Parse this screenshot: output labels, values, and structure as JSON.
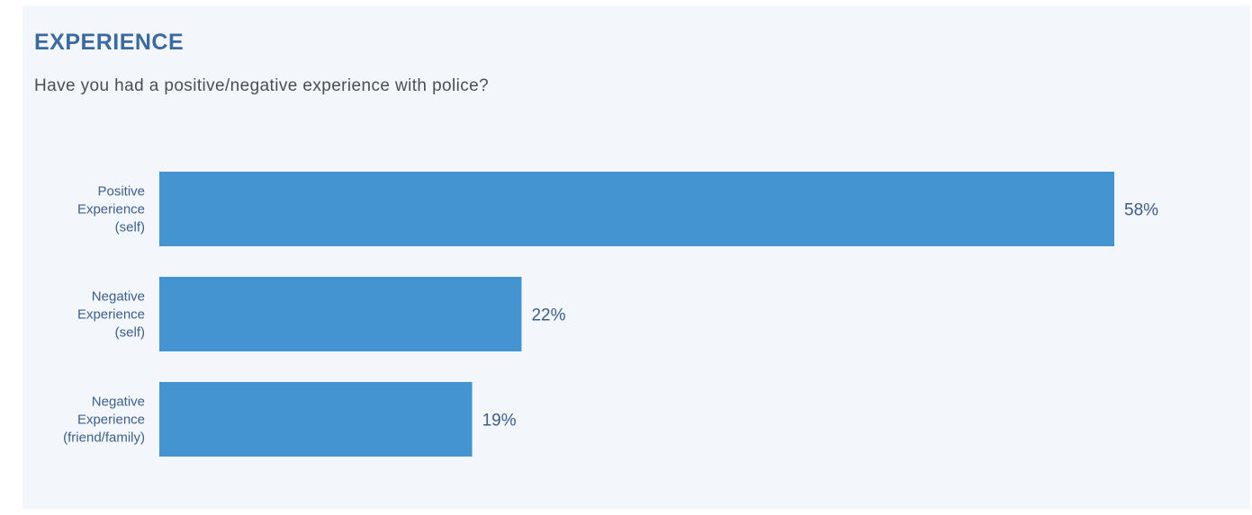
{
  "title": "EXPERIENCE",
  "subtitle": "Have you had a positive/negative experience with police?",
  "colors": {
    "bar": "#4394d0",
    "label": "#3b5f8a",
    "title": "#3b6aa0",
    "background": "#f3f6fb"
  },
  "chart_data": {
    "type": "bar",
    "orientation": "horizontal",
    "categories": [
      [
        "Positive",
        "Experience",
        "(self)"
      ],
      [
        "Negative",
        "Experience",
        "(self)"
      ],
      [
        "Negative",
        "Experience",
        "(friend/family)"
      ]
    ],
    "values": [
      58,
      22,
      19
    ],
    "value_labels": [
      "58%",
      "22%",
      "19%"
    ],
    "title": "EXPERIENCE",
    "subtitle": "Have you had a positive/negative experience with police?",
    "xlim": [
      0,
      58
    ],
    "grid": false
  }
}
